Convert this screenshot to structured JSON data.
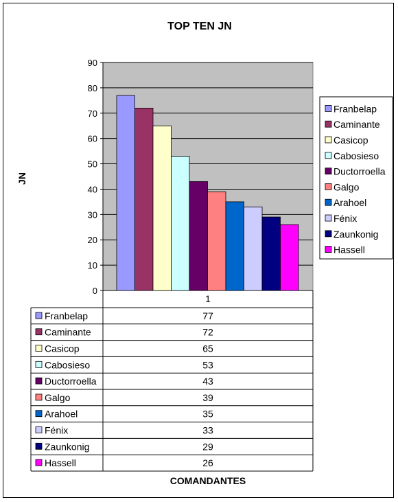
{
  "chart_data": {
    "type": "bar",
    "title": "TOP TEN JN",
    "xlabel": "COMANDANTES",
    "ylabel": "JN",
    "categories": [
      "1"
    ],
    "ylim": [
      0,
      90
    ],
    "yticks": [
      0,
      10,
      20,
      30,
      40,
      50,
      60,
      70,
      80,
      90
    ],
    "grid": true,
    "legend_position": "right",
    "series": [
      {
        "name": "Franbelap",
        "values": [
          77
        ],
        "color": "#9999FF"
      },
      {
        "name": "Caminante",
        "values": [
          72
        ],
        "color": "#993366"
      },
      {
        "name": "Casicop",
        "values": [
          65
        ],
        "color": "#FFFFCC"
      },
      {
        "name": "Cabosieso",
        "values": [
          53
        ],
        "color": "#CCFFFF"
      },
      {
        "name": "Ductorroella",
        "values": [
          43
        ],
        "color": "#660066"
      },
      {
        "name": "Galgo",
        "values": [
          39
        ],
        "color": "#FF8080"
      },
      {
        "name": "Arahoel",
        "values": [
          35
        ],
        "color": "#0066CC"
      },
      {
        "name": "Fénix",
        "values": [
          33
        ],
        "color": "#CCCCFF"
      },
      {
        "name": "Zaunkonig",
        "values": [
          29
        ],
        "color": "#000080"
      },
      {
        "name": "Hassell",
        "values": [
          26
        ],
        "color": "#FF00FF"
      }
    ],
    "plot_background": "#C0C0C0"
  }
}
